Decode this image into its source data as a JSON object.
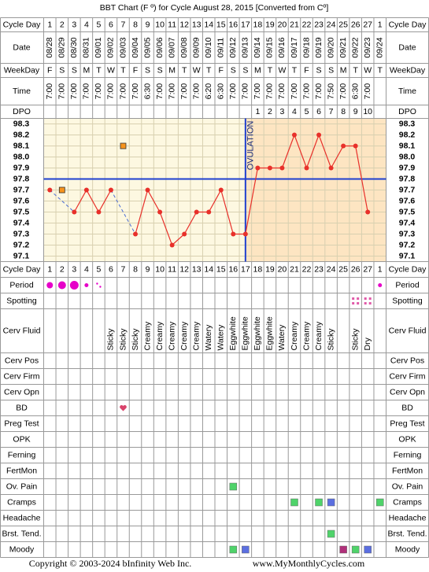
{
  "chart_data": {
    "type": "line",
    "title": "BBT Chart (F º) for Cycle August 28, 2015  [Converted from Cº]",
    "header_rows": [
      "Cycle Day",
      "Date",
      "WeekDay",
      "Time",
      "DPO"
    ],
    "symptom_rows": [
      "Period",
      "Spotting",
      "Cerv Fluid",
      "Cerv Pos",
      "Cerv Firm",
      "Cerv Opn",
      "BD",
      "Preg Test",
      "OPK",
      "Ferning",
      "FertMon",
      "Ov. Pain",
      "Cramps",
      "Headache",
      "Brst. Tend.",
      "Moody"
    ],
    "cycle_days": [
      1,
      2,
      3,
      4,
      5,
      6,
      7,
      8,
      9,
      10,
      11,
      12,
      13,
      14,
      15,
      16,
      17,
      18,
      19,
      20,
      21,
      22,
      23,
      24,
      25,
      26,
      27,
      1
    ],
    "categories": [
      "08/28",
      "08/29",
      "08/30",
      "08/31",
      "09/01",
      "09/02",
      "09/03",
      "09/04",
      "09/05",
      "09/06",
      "09/07",
      "09/08",
      "09/09",
      "09/10",
      "09/11",
      "09/12",
      "09/13",
      "09/14",
      "09/15",
      "09/16",
      "09/17",
      "09/18",
      "09/19",
      "09/20",
      "09/21",
      "09/22",
      "09/23",
      "09/24"
    ],
    "weekdays": [
      "F",
      "S",
      "S",
      "M",
      "T",
      "W",
      "T",
      "F",
      "S",
      "S",
      "M",
      "T",
      "W",
      "T",
      "F",
      "S",
      "S",
      "M",
      "T",
      "W",
      "T",
      "F",
      "S",
      "S",
      "M",
      "T",
      "W",
      "T"
    ],
    "times": [
      "7:00",
      "7:00",
      "7:00",
      "7:00",
      "7:00",
      "7:00",
      "7:00",
      "7:00",
      "6:30",
      "7:00",
      "7:00",
      "7:00",
      "7:00",
      "6:20",
      "6:30",
      "7:00",
      "7:00",
      "7:00",
      "7:00",
      "7:00",
      "7:00",
      "7:00",
      "7:00",
      "7:50",
      "7:00",
      "6:30",
      "7:00",
      null
    ],
    "dpo": [
      null,
      null,
      null,
      null,
      null,
      null,
      null,
      null,
      null,
      null,
      null,
      null,
      null,
      null,
      null,
      null,
      null,
      1,
      2,
      3,
      4,
      5,
      6,
      7,
      8,
      9,
      10,
      null
    ],
    "values": [
      97.7,
      null,
      97.5,
      97.7,
      97.5,
      97.7,
      null,
      97.3,
      97.7,
      97.5,
      97.2,
      97.3,
      97.5,
      97.5,
      97.7,
      97.3,
      97.3,
      97.9,
      97.9,
      97.9,
      98.2,
      97.9,
      98.2,
      97.9,
      98.1,
      98.1,
      97.5,
      null
    ],
    "color": "#e8302a",
    "discarded": [
      null,
      97.7,
      null,
      null,
      null,
      null,
      98.1,
      null,
      null,
      null,
      null,
      null,
      null,
      null,
      null,
      null,
      null,
      null,
      null,
      null,
      null,
      null,
      null,
      null,
      null,
      null,
      null,
      null
    ],
    "discarded_color": "#f7941d",
    "coverline": 97.8,
    "ovulation": {
      "label": "OVULATION",
      "x": "09/13"
    },
    "ylim": [
      97.05,
      98.35
    ],
    "yticks": [
      98.3,
      98.2,
      98.1,
      {
        "value": 98,
        "label": "98.0"
      },
      97.9,
      97.8,
      97.7,
      97.6,
      97.5,
      97.4,
      97.3,
      97.2,
      97.1
    ],
    "cerv_fluid": [
      null,
      null,
      null,
      null,
      null,
      "Sticky",
      "Sticky",
      "Sticky",
      "Creamy",
      "Creamy",
      "Creamy",
      "Creamy",
      "Creamy",
      "Watery",
      "Watery",
      "Eggwhite",
      "Eggwhite",
      "Eggwhite",
      "Eggwhite",
      "Watery",
      "Creamy",
      "Creamy",
      "Creamy",
      "Sticky",
      null,
      "Sticky",
      "Dry",
      null
    ],
    "footer": {
      "copyright": "Copyright © 2003-2024 bInfinity Web Inc.",
      "website": "www.MyMonthlyCycles.com"
    }
  }
}
